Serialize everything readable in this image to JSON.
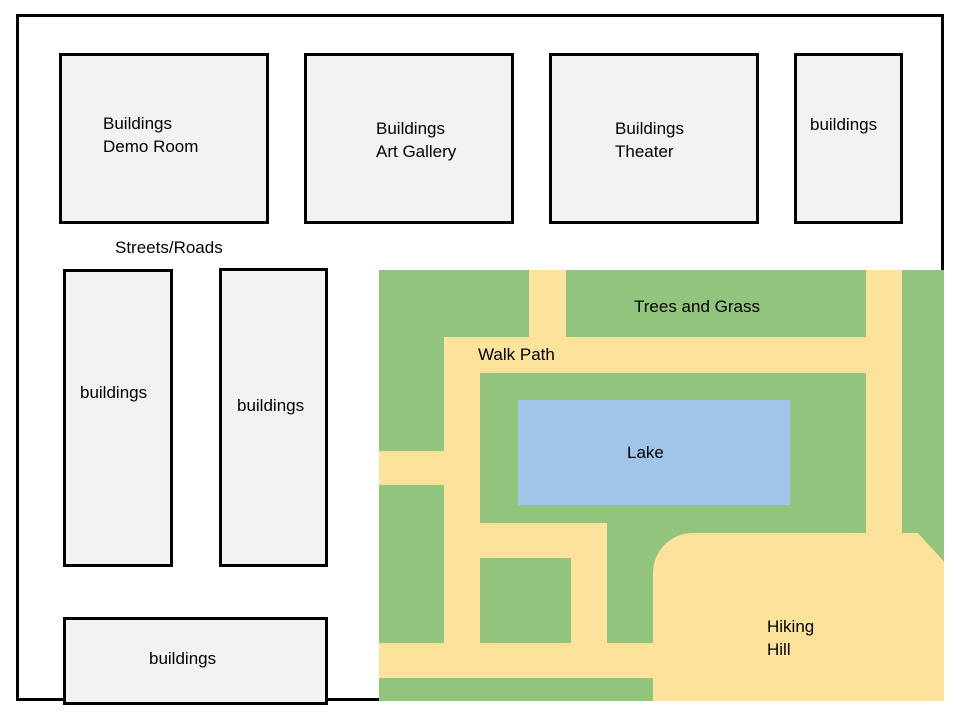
{
  "colors": {
    "building_fill": "#f2f2f2",
    "outline": "#000000",
    "grass": "#93c47d",
    "path": "#fce29a",
    "lake": "#9fc5e8"
  },
  "map": {
    "buildings": {
      "demo_room": {
        "line1": "Buildings",
        "line2": "Demo Room"
      },
      "art_gallery": {
        "line1": "Buildings",
        "line2": "Art Gallery"
      },
      "theater": {
        "line1": "Buildings",
        "line2": "Theater"
      },
      "top_right": "buildings",
      "left_tall_1": "buildings",
      "left_tall_2": "buildings",
      "bottom_left": "buildings"
    },
    "streets_label": "Streets/Roads",
    "park": {
      "trees_label": "Trees and Grass",
      "walk_path_label": "Walk Path",
      "lake_label": "Lake",
      "hill": {
        "line1": "Hiking",
        "line2": "Hill"
      }
    }
  }
}
